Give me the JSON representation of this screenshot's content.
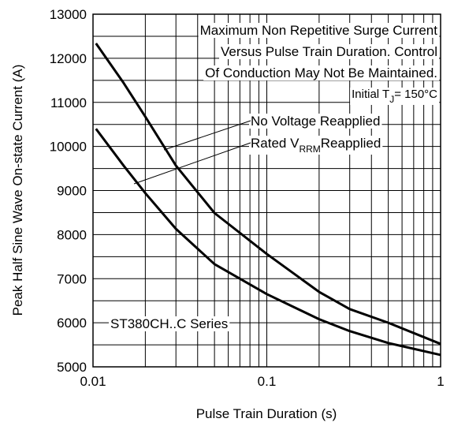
{
  "chart_data": {
    "type": "line",
    "xlabel": "Pulse Train Duration (s)",
    "ylabel": "Peak Half Sine Wave On-state Current (A)",
    "x": [
      0.0104,
      0.015,
      0.02,
      0.03,
      0.05,
      0.1,
      0.2,
      0.3,
      0.5,
      1
    ],
    "series": [
      {
        "color": "#000000",
        "values": [
          12338,
          11440,
          10675,
          9565,
          8490,
          7560,
          6700,
          6310,
          6000,
          5520
        ]
      },
      {
        "color": "#000000",
        "values": [
          10400,
          9565,
          8940,
          8130,
          7330,
          6650,
          6080,
          5810,
          5540,
          5270
        ]
      }
    ],
    "xlim": [
      0.01,
      1
    ],
    "xscale": "log",
    "xticks": [
      0.01,
      0.1,
      1
    ],
    "ylim": [
      5000,
      13000
    ],
    "yticks": [
      5000,
      6000,
      7000,
      8000,
      9000,
      10000,
      11000,
      12000,
      13000
    ],
    "yminor_grid": [
      5500,
      6500,
      7500,
      8500,
      9500,
      10500,
      11500,
      12500
    ],
    "grid": true,
    "annotations": [
      {
        "text": "Maximum Non Repetitive Surge Current"
      },
      {
        "text": "Versus Pulse Train Duration. Control"
      },
      {
        "text": "Of Conduction May Not Be Maintained."
      },
      {
        "parts": [
          "Initial T",
          "J",
          "= 150°C"
        ]
      },
      {
        "text": "No Voltage Reapplied"
      },
      {
        "parts": [
          "Rated V",
          "RRM",
          "Reapplied"
        ]
      },
      {
        "text": "ST380CH..C Series"
      }
    ]
  }
}
